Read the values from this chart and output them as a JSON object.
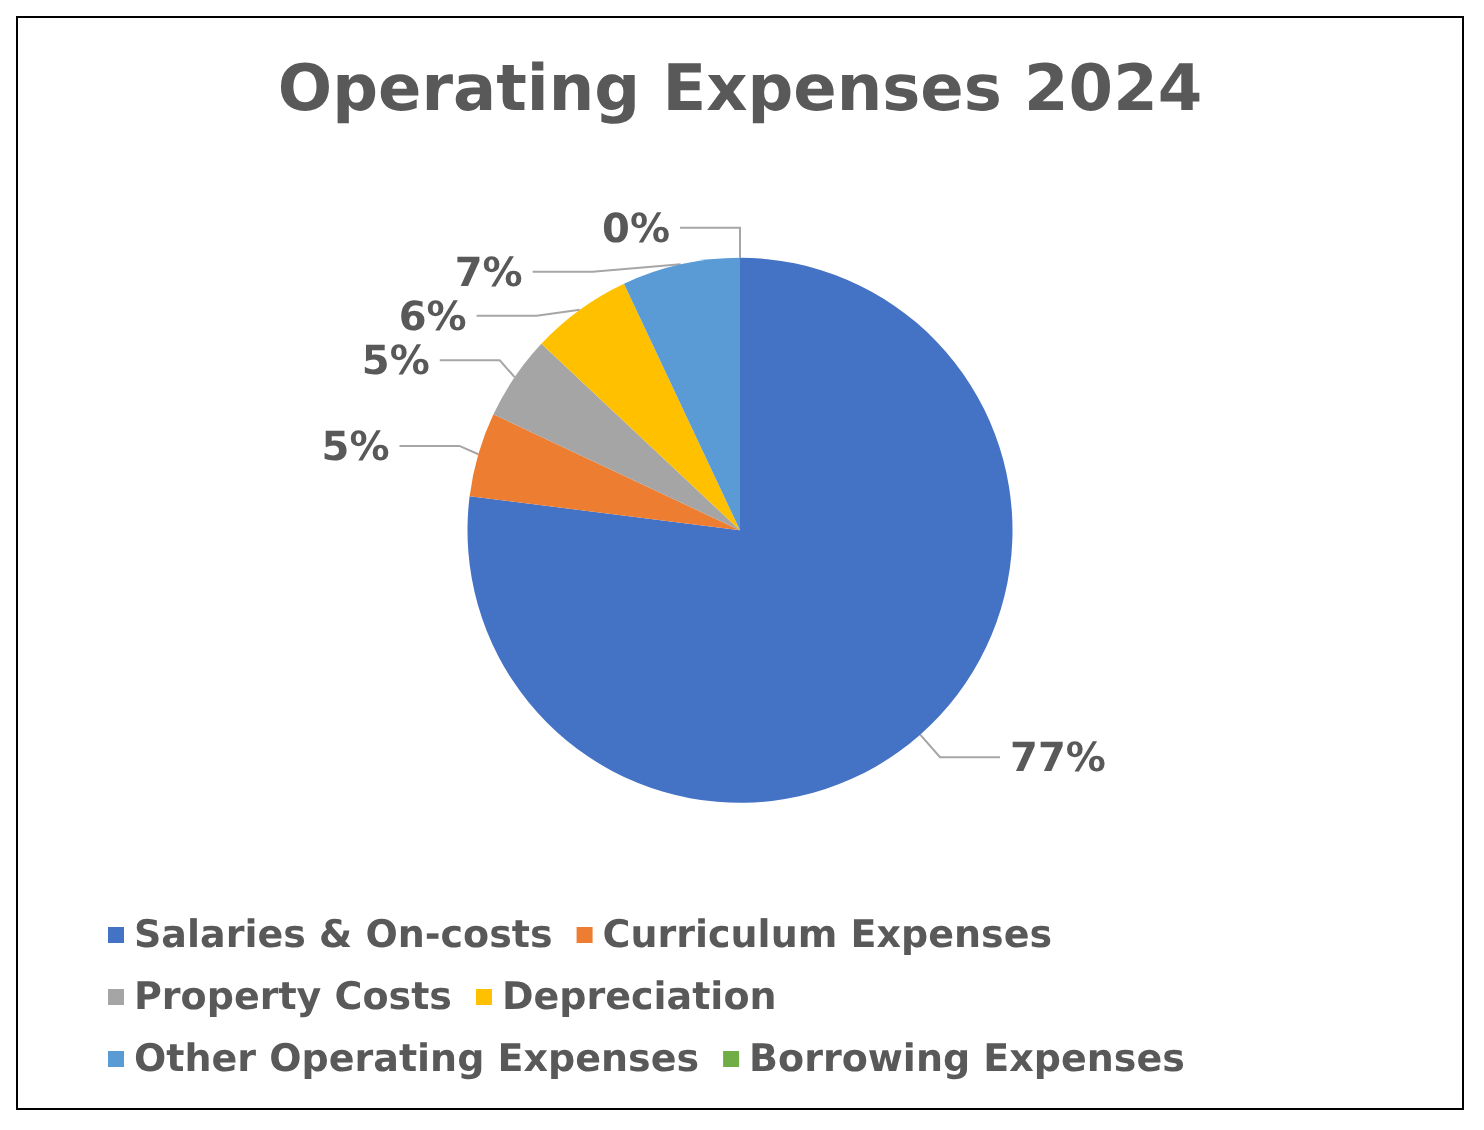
{
  "chart_data": {
    "type": "pie",
    "title": "Operating Expenses 2024",
    "categories": [
      "Salaries & On-costs",
      "Curriculum Expenses",
      "Property Costs",
      "Depreciation",
      "Other Operating Expenses",
      "Borrowing Expenses"
    ],
    "values": [
      77,
      5,
      5,
      6,
      7,
      0
    ],
    "value_labels": [
      "77%",
      "5%",
      "5%",
      "6%",
      "7%",
      "0%"
    ],
    "colors": [
      "#4472c4",
      "#ed7d31",
      "#a5a5a5",
      "#ffc000",
      "#5b9bd5",
      "#70ad47"
    ],
    "legend": "bottom"
  }
}
